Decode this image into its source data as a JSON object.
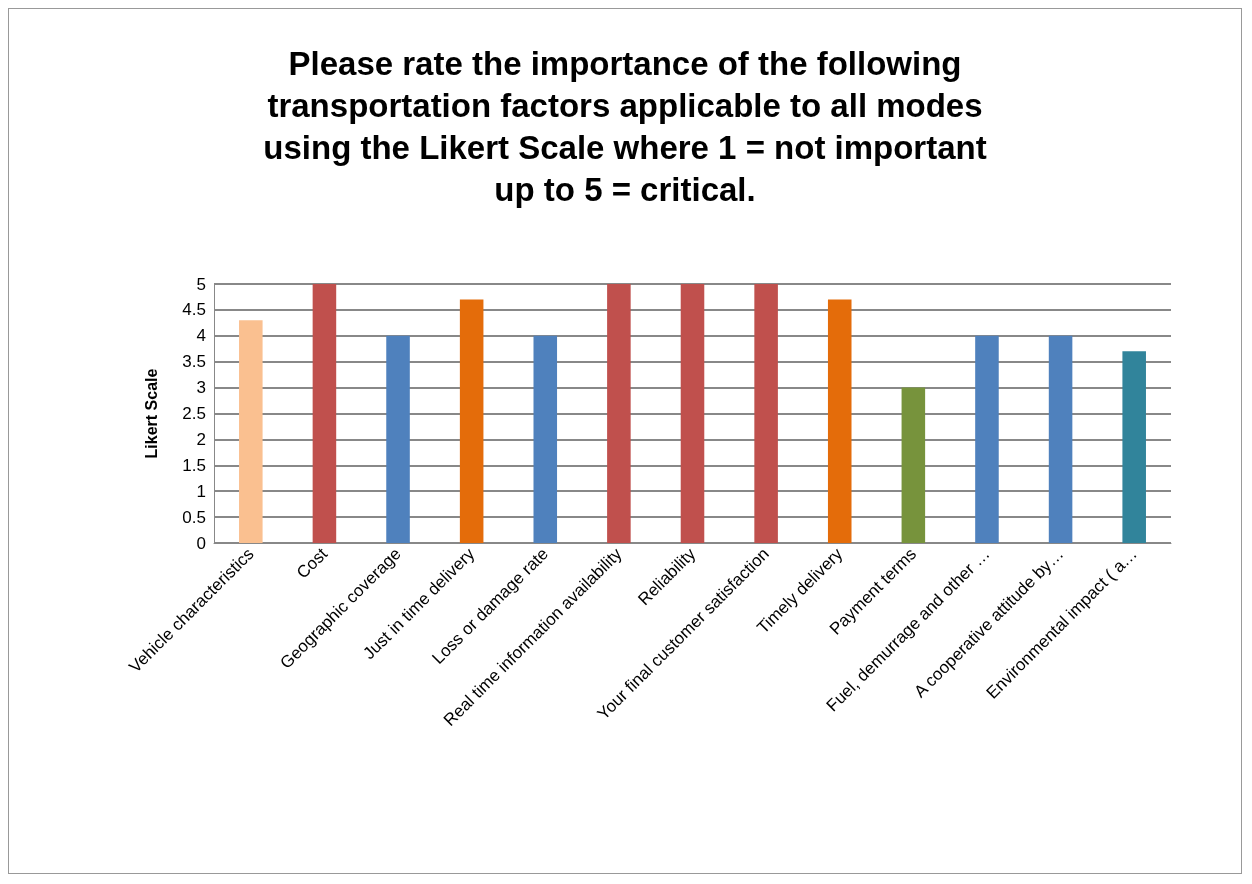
{
  "chart_data": {
    "type": "bar",
    "title": "Please rate the importance of the following\ntransportation factors applicable to all modes\nusing the Likert Scale where 1 = not important\nup to 5 = critical.",
    "ylabel": "Likert Scale",
    "categories": [
      "Vehicle characteristics",
      "Cost",
      "Geographic coverage",
      "Just in time delivery",
      "Loss or damage rate",
      "Real time information availability",
      "Reliability",
      "Your final customer satisfaction",
      "Timely delivery",
      "Payment terms",
      "Fuel, demurrage and other …",
      "A cooperative attitude by…",
      "Environmental impact ( a…"
    ],
    "values": [
      4.3,
      5,
      4,
      4.7,
      4,
      5,
      5,
      5,
      4.7,
      3,
      4,
      4,
      3.7
    ],
    "colors": [
      "#fac090",
      "#c0504d",
      "#4f81bd",
      "#e46c0a",
      "#4f81bd",
      "#c0504d",
      "#c0504d",
      "#c0504d",
      "#e46c0a",
      "#77933c",
      "#4f81bd",
      "#4f81bd",
      "#31849b"
    ],
    "ylim": [
      0,
      5
    ],
    "yticks": [
      0,
      0.5,
      1,
      1.5,
      2,
      2.5,
      3,
      3.5,
      4,
      4.5,
      5
    ],
    "grid": "y"
  }
}
